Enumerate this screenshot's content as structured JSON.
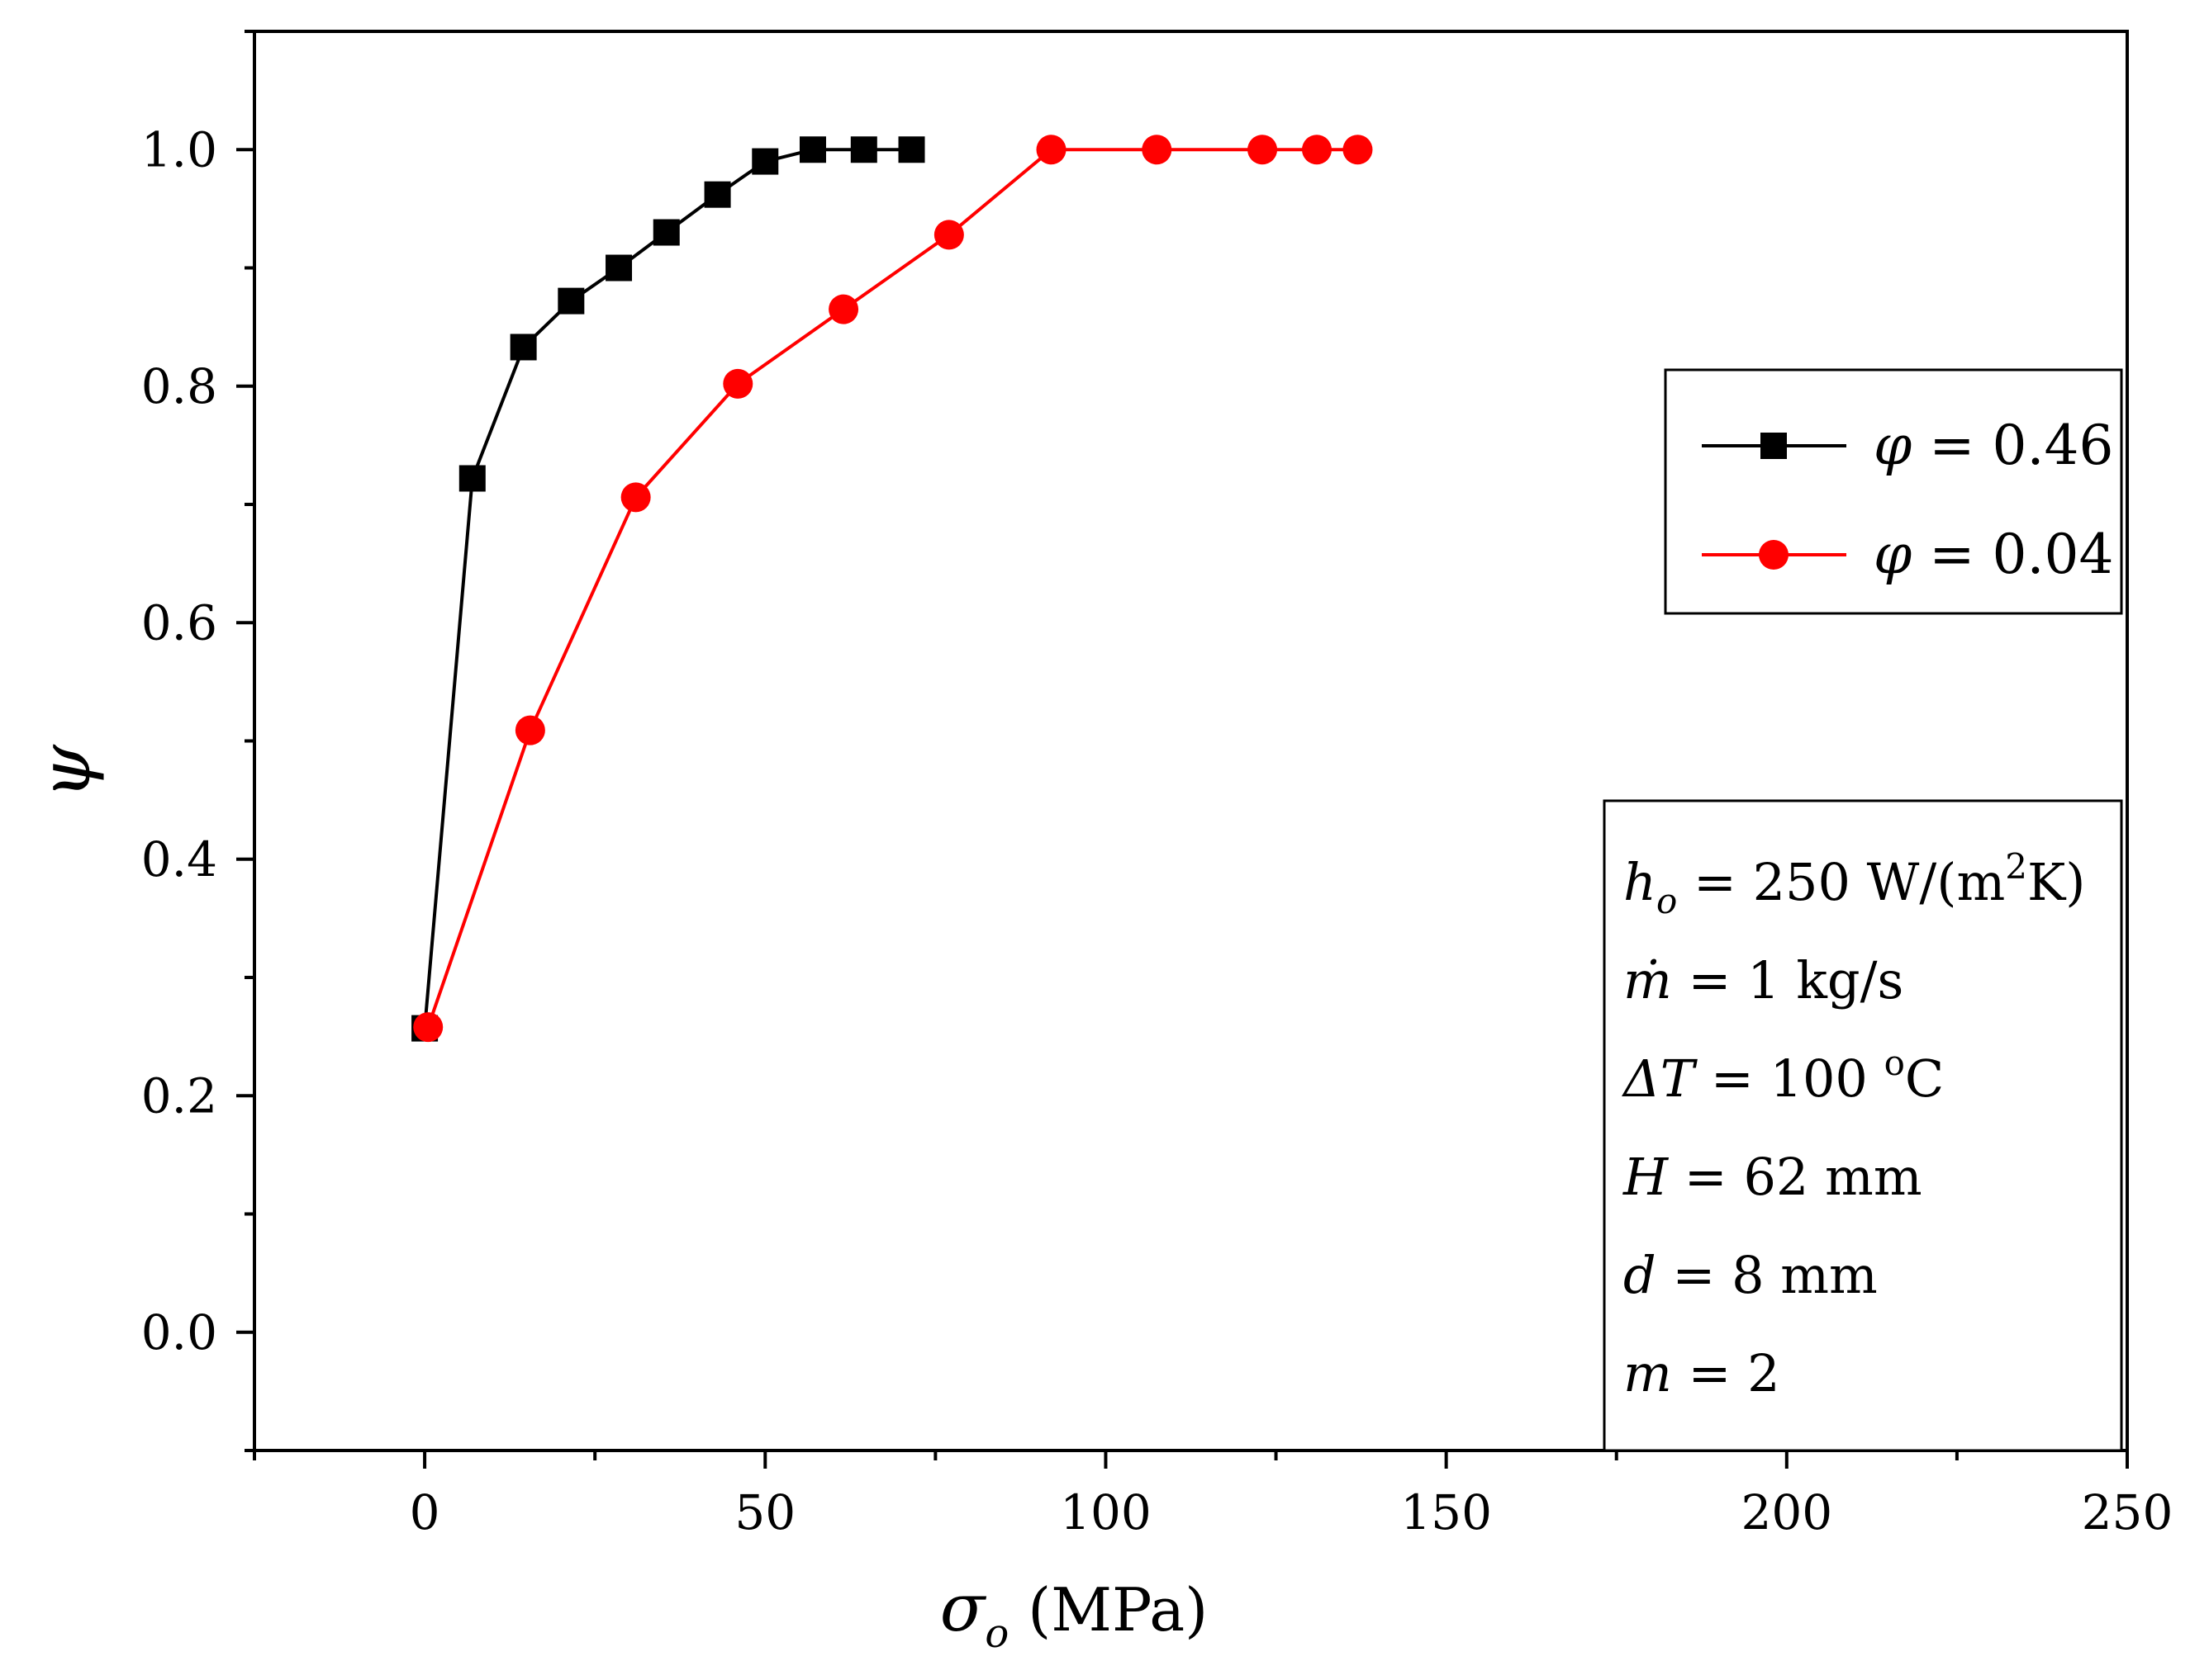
{
  "chart_data": {
    "type": "line",
    "xlabel": {
      "symbol": "σ",
      "subscript": "o",
      "unit": "(MPa)"
    },
    "ylabel": "ψ",
    "xlim": [
      -25,
      250
    ],
    "ylim": [
      -0.1,
      1.1
    ],
    "x_ticks": [
      0,
      50,
      100,
      150,
      200,
      250
    ],
    "x_tick_labels": [
      "0",
      "50",
      "100",
      "150",
      "200",
      "250"
    ],
    "y_ticks": [
      0.0,
      0.2,
      0.4,
      0.6,
      0.8,
      1.0
    ],
    "y_tick_labels": [
      "0.0",
      "0.2",
      "0.4",
      "0.6",
      "0.8",
      "1.0"
    ],
    "legend_position": "upper-right",
    "series": [
      {
        "name": "φ = 0.46",
        "phi_symbol": "φ",
        "phi_value": "= 0.46",
        "color": "#000000",
        "marker": "square",
        "x": [
          0,
          7,
          14.5,
          21.5,
          28.5,
          35.5,
          43,
          50,
          57,
          64.5,
          71.5
        ],
        "y": [
          0.257,
          0.722,
          0.833,
          0.872,
          0.9,
          0.93,
          0.962,
          0.99,
          1.0,
          1.0,
          1.0
        ]
      },
      {
        "name": "φ = 0.04",
        "phi_symbol": "φ",
        "phi_value": "= 0.04",
        "color": "#ff0000",
        "marker": "circle",
        "x": [
          0.5,
          15.5,
          31,
          46,
          61.5,
          77,
          92,
          107.5,
          123,
          131,
          137
        ],
        "y": [
          0.258,
          0.509,
          0.706,
          0.802,
          0.865,
          0.928,
          1.0,
          1.0,
          1.0,
          1.0,
          1.0
        ]
      }
    ],
    "annotations": [
      {
        "var": "h",
        "sub": "o",
        "value": "= 250 W/(m",
        "sup": "2",
        "tail": "K)"
      },
      {
        "var": "ṁ",
        "value": "= 1 kg/s"
      },
      {
        "var": "ΔT",
        "value": "= 100 ",
        "sup": "o",
        "tail": "C"
      },
      {
        "var": "H",
        "value": "= 62 mm"
      },
      {
        "var": "d",
        "value": "= 8 mm"
      },
      {
        "var": "m",
        "value": "= 2"
      }
    ]
  }
}
